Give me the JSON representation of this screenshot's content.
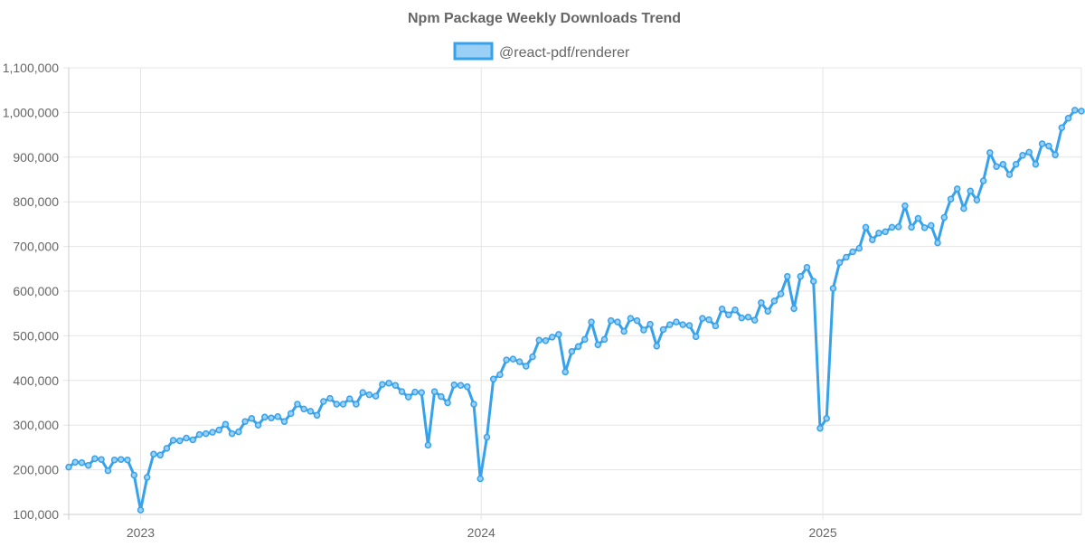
{
  "chart_data": {
    "type": "line",
    "title": "Npm Package Weekly Downloads Trend",
    "xlabel": "",
    "ylabel": "",
    "ylim": [
      100000,
      1100000
    ],
    "yticks": [
      100000,
      200000,
      300000,
      400000,
      500000,
      600000,
      700000,
      800000,
      900000,
      1000000,
      1100000
    ],
    "ytick_labels": [
      "100,000",
      "200,000",
      "300,000",
      "400,000",
      "500,000",
      "600,000",
      "700,000",
      "800,000",
      "900,000",
      "1,000,000",
      "1,100,000"
    ],
    "xlim": [
      "2022-10-16",
      "2025-10-05"
    ],
    "xticks": [
      "2023-01-01",
      "2024-01-01",
      "2025-01-01"
    ],
    "xtick_labels": [
      "2023",
      "2024",
      "2025"
    ],
    "grid": true,
    "legend": "top-center",
    "series": [
      {
        "name": "@react-pdf/renderer",
        "color": "#36a2eb",
        "fill": "#9ad0f5",
        "x_start": "2022-10-16",
        "x_step_days": 7,
        "values": [
          206000,
          217000,
          216000,
          210000,
          225000,
          223000,
          198000,
          222000,
          223000,
          222000,
          188000,
          110000,
          183000,
          235000,
          233000,
          248000,
          266000,
          265000,
          271000,
          267000,
          279000,
          281000,
          284000,
          289000,
          302000,
          281000,
          285000,
          308000,
          315000,
          300000,
          318000,
          316000,
          319000,
          308000,
          326000,
          347000,
          336000,
          331000,
          322000,
          353000,
          360000,
          347000,
          347000,
          359000,
          347000,
          373000,
          368000,
          365000,
          391000,
          394000,
          389000,
          375000,
          363000,
          374000,
          373000,
          255000,
          375000,
          364000,
          350000,
          390000,
          389000,
          386000,
          347000,
          180000,
          273000,
          403000,
          413000,
          446000,
          448000,
          442000,
          432000,
          453000,
          490000,
          489000,
          497000,
          503000,
          419000,
          465000,
          476000,
          492000,
          531000,
          480000,
          492000,
          534000,
          531000,
          510000,
          539000,
          534000,
          513000,
          526000,
          477000,
          514000,
          525000,
          531000,
          525000,
          523000,
          498000,
          539000,
          536000,
          522000,
          560000,
          547000,
          558000,
          540000,
          542000,
          535000,
          574000,
          555000,
          578000,
          594000,
          633000,
          561000,
          633000,
          653000,
          622000,
          293000,
          315000,
          606000,
          664000,
          676000,
          688000,
          696000,
          743000,
          715000,
          730000,
          733000,
          743000,
          744000,
          791000,
          743000,
          763000,
          742000,
          747000,
          708000,
          765000,
          806000,
          829000,
          785000,
          824000,
          804000,
          847000,
          910000,
          879000,
          884000,
          861000,
          884000,
          904000,
          911000,
          884000,
          930000,
          925000,
          905000,
          966000,
          987000,
          1005000,
          1003000
        ]
      }
    ]
  }
}
